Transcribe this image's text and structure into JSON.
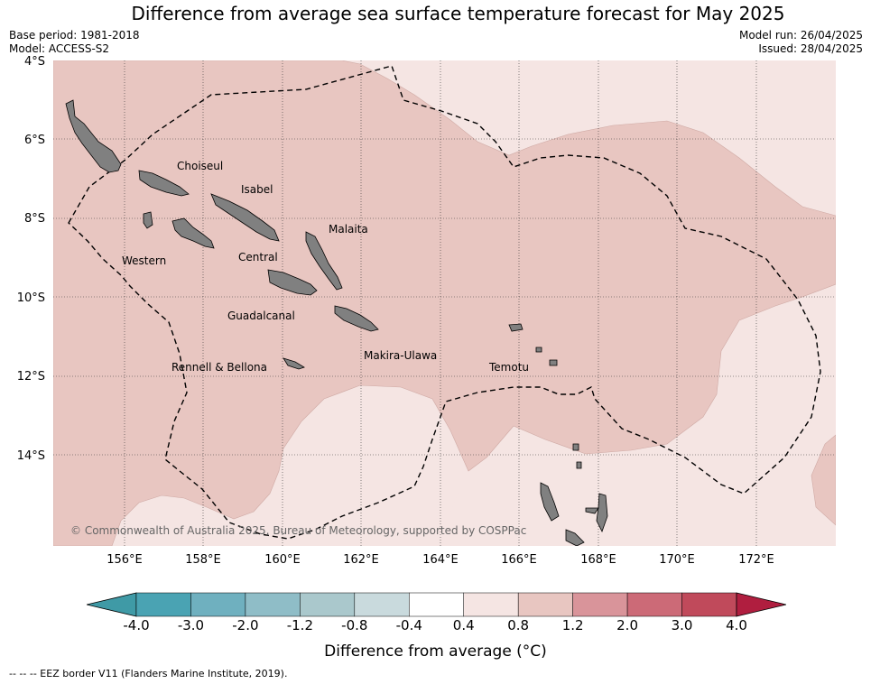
{
  "title": "Difference from average sea surface temperature forecast for May 2025",
  "meta": {
    "base_period": "Base period: 1981-2018",
    "model": "Model: ACCESS-S2",
    "model_run": "Model run: 26/04/2025",
    "issued": "Issued: 28/04/2025"
  },
  "axes": {
    "lat_ticks": [
      "4°S",
      "6°S",
      "8°S",
      "10°S",
      "12°S",
      "14°S"
    ],
    "lon_ticks": [
      "156°E",
      "158°E",
      "160°E",
      "162°E",
      "164°E",
      "166°E",
      "168°E",
      "170°E",
      "172°E"
    ]
  },
  "regions": {
    "choiseul": "Choiseul",
    "isabel": "Isabel",
    "malaita": "Malaita",
    "western": "Western",
    "central": "Central",
    "guadalcanal": "Guadalcanal",
    "makira": "Makira-Ulawa",
    "rennell": "Rennell & Bellona",
    "temotu": "Temotu"
  },
  "copyright": "© Commonwealth of Australia 2025, Bureau of Meteorology, supported by COSPPac",
  "legend": {
    "label": "Difference from average (°C)",
    "ticks": [
      "-4.0",
      "-3.0",
      "-2.0",
      "-1.2",
      "-0.8",
      "-0.4",
      "0.4",
      "0.8",
      "1.2",
      "2.0",
      "3.0",
      "4.0"
    ],
    "colors": [
      "#3f9aa6",
      "#4aa3b3",
      "#6fb0bf",
      "#8fbdc7",
      "#aac8cc",
      "#c9dadd",
      "#ffffff",
      "#f5e5e3",
      "#e8c6c1",
      "#d9949a",
      "#cc6a77",
      "#c04a5b",
      "#b01e3f"
    ]
  },
  "footer": "-- -- -- EEZ border V11 (Flanders Marine Institute, 2019)."
}
